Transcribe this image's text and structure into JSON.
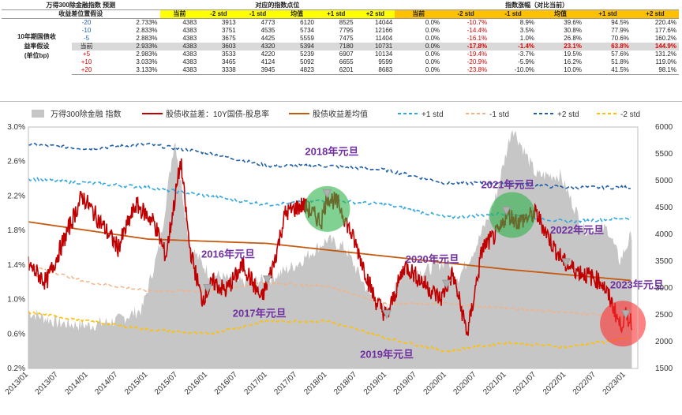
{
  "table": {
    "title": "万得300除金融指数 预测",
    "subtitle": "收益差位置假设",
    "group_points": "对应的指数点位",
    "group_change": "指数涨幅（对比当前）",
    "row_label": [
      "10年期国债收",
      "益率假设",
      "(单位bp)"
    ],
    "col_headers": [
      "当前",
      "-2 std",
      "-1 std",
      "均值",
      "+1 std",
      "+2 std"
    ],
    "rows": [
      {
        "delta": "-20",
        "yield": "2.733%",
        "pts": [
          "4383",
          "3913",
          "4773",
          "6120",
          "8525",
          "14044"
        ],
        "chg": [
          "0.0%",
          "-10.7%",
          "8.9%",
          "39.6%",
          "94.5%",
          "220.4%"
        ]
      },
      {
        "delta": "-10",
        "yield": "2.833%",
        "pts": [
          "4383",
          "3751",
          "4535",
          "5734",
          "7795",
          "12166"
        ],
        "chg": [
          "0.0%",
          "-14.4%",
          "3.5%",
          "30.8%",
          "77.9%",
          "177.6%"
        ]
      },
      {
        "delta": "-5",
        "yield": "2.883%",
        "pts": [
          "4383",
          "3675",
          "4425",
          "5559",
          "7475",
          "11404"
        ],
        "chg": [
          "0.0%",
          "-16.1%",
          "1.0%",
          "26.8%",
          "70.6%",
          "160.2%"
        ]
      },
      {
        "delta": "当前",
        "yield": "2.933%",
        "pts": [
          "4383",
          "3603",
          "4320",
          "5394",
          "7180",
          "10731"
        ],
        "chg": [
          "0.0%",
          "-17.8%",
          "-1.4%",
          "23.1%",
          "63.8%",
          "144.9%"
        ]
      },
      {
        "delta": "+5",
        "yield": "2.983%",
        "pts": [
          "4383",
          "3533",
          "4220",
          "5239",
          "6907",
          "10134"
        ],
        "chg": [
          "0.0%",
          "-19.4%",
          "-3.7%",
          "19.5%",
          "57.6%",
          "131.2%"
        ]
      },
      {
        "delta": "+10",
        "yield": "3.033%",
        "pts": [
          "4383",
          "3465",
          "4124",
          "5092",
          "6655",
          "9599"
        ],
        "chg": [
          "0.0%",
          "-20.9%",
          "-5.9%",
          "16.2%",
          "51.8%",
          "119.0%"
        ]
      },
      {
        "delta": "+20",
        "yield": "3.133%",
        "pts": [
          "4383",
          "3338",
          "3945",
          "4823",
          "6201",
          "8683"
        ],
        "chg": [
          "0.0%",
          "-23.8%",
          "-10.0%",
          "10.0%",
          "41.5%",
          "98.1%"
        ]
      }
    ]
  },
  "chart_data": {
    "type": "line",
    "series_legend": [
      "万得300除金融 指数",
      "股债收益差：10Y国债-股息率",
      "股债收益差均值",
      "+1 std",
      "-1 std",
      "+2 std",
      "-2 std"
    ],
    "x_ticks": [
      "2013/01",
      "2013/07",
      "2014/01",
      "2014/07",
      "2015/01",
      "2015/07",
      "2016/01",
      "2016/07",
      "2017/01",
      "2017/07",
      "2018/01",
      "2018/07",
      "2019/01",
      "2019/07",
      "2020/01",
      "2020/07",
      "2021/01",
      "2021/07",
      "2022/01",
      "2022/07",
      "2023/01"
    ],
    "y_left_ticks": [
      "0.2%",
      "0.6%",
      "1.0%",
      "1.4%",
      "1.8%",
      "2.2%",
      "2.6%",
      "3.0%"
    ],
    "y_left_range": [
      0.2,
      3.0
    ],
    "y_right_ticks": [
      "1500",
      "2000",
      "2500",
      "3000",
      "3500",
      "4000",
      "4500",
      "5000",
      "5500",
      "6000"
    ],
    "y_right_range": [
      1500,
      6000
    ],
    "annotations": [
      {
        "text": "2016年元旦",
        "date": 2016.0
      },
      {
        "text": "2017年元旦",
        "date": 2017.0
      },
      {
        "text": "2018年元旦",
        "date": 2018.0
      },
      {
        "text": "2019年元旦",
        "date": 2019.0
      },
      {
        "text": "2020年元旦",
        "date": 2020.0
      },
      {
        "text": "2021年元旦",
        "date": 2021.0
      },
      {
        "text": "2022年元旦",
        "date": 2022.0
      },
      {
        "text": "2023年元旦",
        "date": 2023.0
      }
    ],
    "x_range": [
      2013.0,
      2023.2
    ],
    "index_series": {
      "x": [
        2013.0,
        2013.5,
        2014.0,
        2014.5,
        2014.9,
        2015.2,
        2015.45,
        2015.7,
        2016.0,
        2016.5,
        2017.0,
        2017.5,
        2018.0,
        2018.3,
        2018.7,
        2019.0,
        2019.3,
        2019.6,
        2020.0,
        2020.2,
        2020.5,
        2020.8,
        2021.1,
        2021.5,
        2021.9,
        2022.3,
        2022.7,
        2022.9,
        2023.1
      ],
      "values": [
        2550,
        2350,
        2300,
        2400,
        2600,
        3800,
        5800,
        3800,
        3300,
        3100,
        3150,
        3450,
        3900,
        3750,
        2900,
        2600,
        3400,
        3300,
        3500,
        3200,
        3800,
        4600,
        6000,
        5100,
        5100,
        4100,
        4100,
        3500,
        4000
      ]
    },
    "spread_series": {
      "x": [
        2013.0,
        2013.3,
        2013.6,
        2013.9,
        2014.2,
        2014.5,
        2014.8,
        2015.1,
        2015.3,
        2015.55,
        2015.7,
        2015.9,
        2016.1,
        2016.3,
        2016.6,
        2016.9,
        2017.1,
        2017.3,
        2017.6,
        2017.9,
        2018.0,
        2018.2,
        2018.5,
        2018.8,
        2019.0,
        2019.3,
        2019.6,
        2019.9,
        2020.1,
        2020.35,
        2020.6,
        2020.9,
        2021.0,
        2021.2,
        2021.5,
        2021.8,
        2022.0,
        2022.3,
        2022.6,
        2022.8,
        2022.9,
        2023.0,
        2023.1
      ],
      "values": [
        1.4,
        1.2,
        1.7,
        2.2,
        1.9,
        1.6,
        2.1,
        1.9,
        1.5,
        2.6,
        1.6,
        1.0,
        1.2,
        1.1,
        1.4,
        1.0,
        1.4,
        2.0,
        2.1,
        1.9,
        2.2,
        2.1,
        1.6,
        1.0,
        0.8,
        1.4,
        1.2,
        1.0,
        1.3,
        0.6,
        1.6,
        1.8,
        2.0,
        1.9,
        2.0,
        1.6,
        1.4,
        1.3,
        1.2,
        0.9,
        0.7,
        0.8,
        0.75
      ]
    },
    "mean_series": {
      "x": [
        2013.0,
        2015.0,
        2017.0,
        2019.0,
        2021.0,
        2023.1
      ],
      "values": [
        1.9,
        1.7,
        1.65,
        1.5,
        1.35,
        1.22
      ]
    },
    "plus1_series": {
      "x": [
        2013.0,
        2014.0,
        2015.0,
        2016.0,
        2017.0,
        2018.0,
        2019.0,
        2020.0,
        2021.0,
        2022.0,
        2023.1
      ],
      "values": [
        2.4,
        2.35,
        2.3,
        2.2,
        2.1,
        2.15,
        2.1,
        1.95,
        2.0,
        1.9,
        1.95
      ]
    },
    "minus1_series": {
      "x": [
        2013.0,
        2014.0,
        2015.0,
        2016.0,
        2017.0,
        2018.0,
        2019.0,
        2020.0,
        2021.0,
        2022.0,
        2023.1
      ],
      "values": [
        1.4,
        1.2,
        1.1,
        1.1,
        1.2,
        1.15,
        0.95,
        0.95,
        0.9,
        0.85,
        0.8
      ]
    },
    "plus2_series": {
      "x": [
        2013.0,
        2014.0,
        2015.0,
        2016.0,
        2017.0,
        2018.0,
        2019.0,
        2020.0,
        2021.0,
        2022.0,
        2023.1
      ],
      "values": [
        2.8,
        2.75,
        2.8,
        2.7,
        2.55,
        2.55,
        2.5,
        2.35,
        2.35,
        2.3,
        2.3
      ]
    },
    "minus2_series": {
      "x": [
        2013.0,
        2014.0,
        2015.0,
        2016.0,
        2017.0,
        2018.0,
        2019.0,
        2020.0,
        2021.0,
        2022.0,
        2023.1
      ],
      "values": [
        0.85,
        0.75,
        0.65,
        0.6,
        0.75,
        0.75,
        0.55,
        0.4,
        0.5,
        0.45,
        0.55
      ]
    },
    "highlights": [
      {
        "date": 2018.0,
        "value": 2.05,
        "color": "#2db34a"
      },
      {
        "date": 2021.1,
        "value": 1.98,
        "color": "#2db34a"
      },
      {
        "date": 2022.95,
        "value": 0.72,
        "color": "#ff3030"
      }
    ],
    "colors": {
      "index": "#c6c6c6",
      "spread": "#c00000",
      "mean": "#c55a11",
      "plus1": "#33a6dd",
      "minus1": "#f4b183",
      "plus2": "#1f5fa8",
      "minus2": "#ffc000",
      "annot": "#7030a0"
    }
  }
}
